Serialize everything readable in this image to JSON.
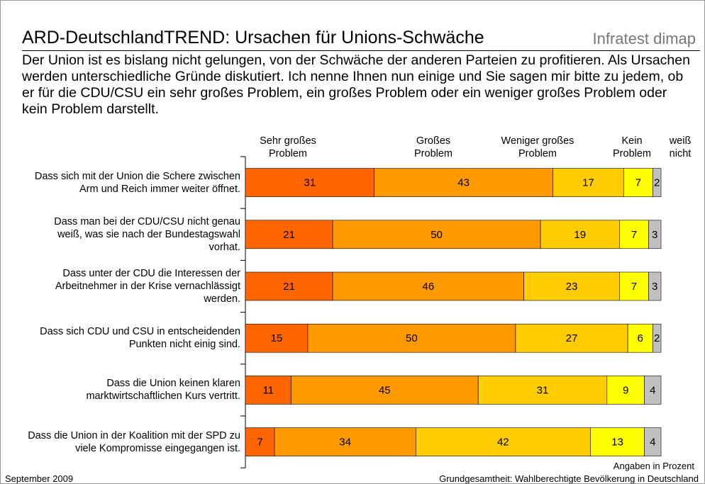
{
  "chart_data": {
    "type": "stacked-bar-horizontal",
    "title": "ARD-DeutschlandTREND: Ursachen für Unions-Schwäche",
    "brand": "Infratest dimap",
    "subtitle": "Der Union ist es bislang nicht gelungen, von der Schwäche der anderen Parteien zu profitieren. Als Ursachen werden unterschiedliche Gründe diskutiert. Ich nenne Ihnen nun einige und Sie sagen mir bitte zu jedem, ob er für die CDU/CSU ein sehr großes Problem, ein großes Problem oder ein weniger großes Problem oder kein Problem darstellt.",
    "categories": [
      "Dass sich mit der Union die Schere zwischen Arm und Reich immer weiter öffnet.",
      "Dass man bei der CDU/CSU nicht genau weiß, was sie nach der Bundestagswahl vorhat.",
      "Dass unter der CDU die Interessen der Arbeitnehmer in der Krise vernachlässigt werden.",
      "Dass sich CDU und CSU in entscheidenden Punkten nicht einig sind.",
      "Dass die Union keinen klaren marktwirtschaftlichen Kurs vertritt.",
      "Dass die Union in der Koalition mit der SPD zu viele Kompromisse eingegangen ist."
    ],
    "series": [
      {
        "name": "Sehr großes Problem",
        "color": "#ff6600",
        "values": [
          31,
          21,
          21,
          15,
          11,
          7
        ]
      },
      {
        "name": "Großes Problem",
        "color": "#ff9900",
        "values": [
          43,
          50,
          46,
          50,
          45,
          34
        ]
      },
      {
        "name": "Weniger großes Problem",
        "color": "#ffcc00",
        "values": [
          17,
          19,
          23,
          27,
          31,
          42
        ]
      },
      {
        "name": "Kein Problem",
        "color": "#ffff00",
        "values": [
          7,
          7,
          7,
          6,
          9,
          13
        ]
      },
      {
        "name": "weiß nicht",
        "color": "#c0c0c0",
        "values": [
          2,
          3,
          3,
          2,
          4,
          4
        ]
      }
    ],
    "xlim": [
      0,
      100
    ],
    "unit_note": "Angaben in Prozent",
    "date": "September 2009",
    "source": "Grundgesamtheit: Wahlberechtigte Bevölkerung in Deutschland"
  }
}
